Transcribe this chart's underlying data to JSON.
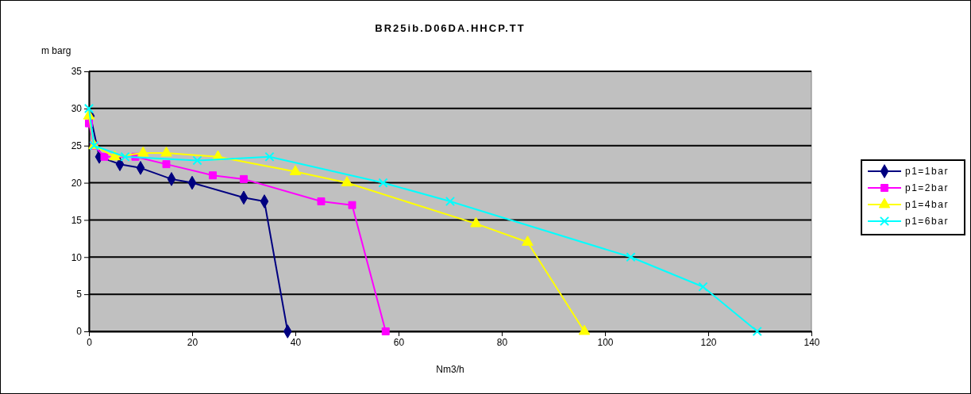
{
  "chart_data": {
    "type": "line",
    "title": "BR25ib.D06DA.HHCP.TT",
    "xlabel": "Nm3/h",
    "ylabel": "m barg",
    "xlim": [
      0,
      140
    ],
    "xticks": [
      0,
      20,
      40,
      60,
      80,
      100,
      120,
      140
    ],
    "ylim": [
      0,
      35
    ],
    "yticks": [
      0,
      5,
      10,
      15,
      20,
      25,
      30,
      35
    ],
    "grid": "y",
    "legend": "right",
    "line_style": "solid",
    "series": [
      {
        "name": "p1=1bar",
        "color": "#000080",
        "marker": "diamond",
        "x": [
          0.3,
          2,
          6,
          10,
          16,
          20,
          30,
          34,
          38.5
        ],
        "values": [
          29,
          23.5,
          22.5,
          22,
          20.5,
          20,
          18,
          17.5,
          0
        ]
      },
      {
        "name": "p1=2bar",
        "color": "#ff00ff",
        "marker": "square",
        "x": [
          0,
          1,
          3,
          9,
          15,
          24,
          30,
          45,
          51,
          57.5
        ],
        "values": [
          28,
          25,
          23.5,
          23.5,
          22.5,
          21,
          20.5,
          17.5,
          17,
          0
        ]
      },
      {
        "name": "p1=4bar",
        "color": "#ffff00",
        "marker": "triangle",
        "x": [
          0,
          1,
          5,
          10.5,
          15,
          25,
          40,
          50,
          75,
          85,
          96
        ],
        "values": [
          29,
          25,
          23.5,
          24,
          24,
          23.5,
          21.5,
          20,
          14.5,
          12,
          0
        ]
      },
      {
        "name": "p1=6bar",
        "color": "#00ffff",
        "marker": "cross",
        "x": [
          0,
          1,
          7,
          21,
          35,
          57,
          70,
          105,
          119,
          129.5
        ],
        "values": [
          30,
          25,
          23.5,
          23,
          23.5,
          20,
          17.5,
          10,
          6,
          0
        ]
      }
    ]
  }
}
